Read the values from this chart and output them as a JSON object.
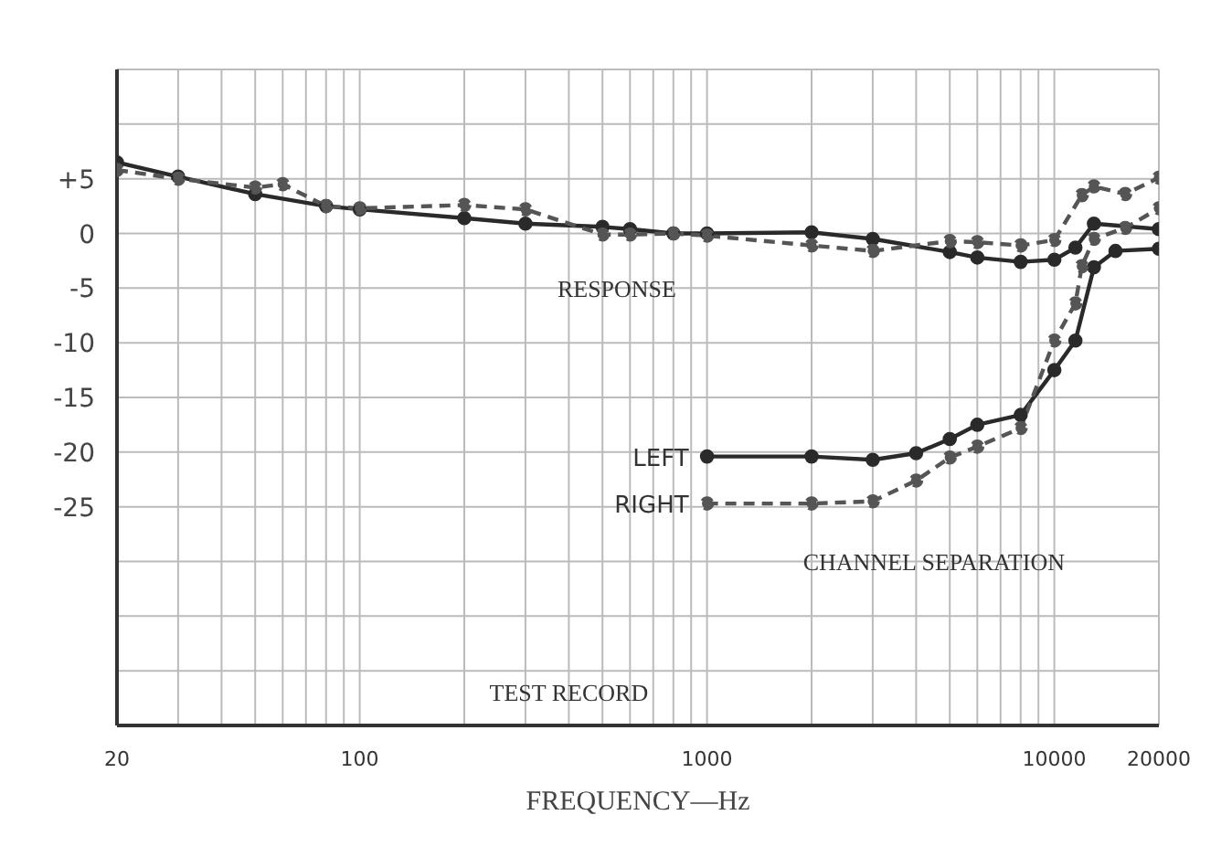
{
  "chart_data": {
    "type": "line",
    "xlabel": "FREQUENCY—Hz",
    "log": "x",
    "grid": true,
    "marker": "circle",
    "xlim": [
      20,
      20000
    ],
    "ylim": [
      -45,
      15
    ],
    "xticks": [
      20,
      {
        "value": 30,
        "label": null
      },
      {
        "value": 40,
        "label": null
      },
      {
        "value": 50,
        "label": null
      },
      {
        "value": 60,
        "label": null
      },
      {
        "value": 70,
        "label": null
      },
      {
        "value": 80,
        "label": null
      },
      {
        "value": 90,
        "label": null
      },
      100,
      {
        "value": 200,
        "label": null
      },
      {
        "value": 300,
        "label": null
      },
      {
        "value": 400,
        "label": null
      },
      {
        "value": 500,
        "label": null
      },
      {
        "value": 600,
        "label": null
      },
      {
        "value": 700,
        "label": null
      },
      {
        "value": 800,
        "label": null
      },
      {
        "value": 900,
        "label": null
      },
      1000,
      {
        "value": 2000,
        "label": null
      },
      {
        "value": 3000,
        "label": null
      },
      {
        "value": 4000,
        "label": null
      },
      {
        "value": 5000,
        "label": null
      },
      {
        "value": 6000,
        "label": null
      },
      {
        "value": 7000,
        "label": null
      },
      {
        "value": 8000,
        "label": null
      },
      {
        "value": 9000,
        "label": null
      },
      10000,
      20000
    ],
    "yticks": [
      {
        "value": -45,
        "label": null
      },
      {
        "value": -40,
        "label": null
      },
      {
        "value": -35,
        "label": null
      },
      {
        "value": -30,
        "label": null
      },
      -25,
      -20,
      -15,
      -10,
      -5,
      0,
      {
        "value": 5,
        "label": "+5"
      },
      {
        "value": 10,
        "label": null
      },
      {
        "value": 15,
        "label": null
      }
    ],
    "annotations": [
      "RESPONSE",
      "CHANNEL SEPARATION",
      "TEST RECORD"
    ],
    "series": [
      {
        "color": "#2a2a2a",
        "line_style": "solid",
        "x": [
          20,
          30,
          50,
          80,
          100,
          200,
          300,
          500,
          600,
          800,
          1000,
          2000,
          3000,
          5000,
          6000,
          8000,
          10000,
          11500,
          13000,
          20000
        ],
        "values": [
          6.5,
          5.2,
          3.6,
          2.5,
          2.2,
          1.4,
          0.9,
          0.6,
          0.4,
          0,
          0,
          0.1,
          -0.5,
          -1.7,
          -2.2,
          -2.6,
          -2.4,
          -1.3,
          0.9,
          0.4
        ]
      },
      {
        "color": "#555555",
        "line_style": "dashed",
        "x": [
          20,
          30,
          50,
          60,
          80,
          100,
          200,
          300,
          500,
          600,
          800,
          1000,
          2000,
          3000,
          5000,
          6000,
          8000,
          10000,
          12000,
          13000,
          16000,
          20000
        ],
        "values": [
          5.8,
          5,
          4.2,
          4.5,
          2.5,
          2.3,
          2.6,
          2.2,
          -0.1,
          -0.1,
          0,
          -0.2,
          -1.1,
          -1.6,
          -0.7,
          -0.8,
          -1.1,
          -0.6,
          3.5,
          4.3,
          3.6,
          5.1
        ]
      },
      {
        "name": "LEFT",
        "color": "#2a2a2a",
        "line_style": "solid",
        "x": [
          1000,
          2000,
          3000,
          4000,
          5000,
          6000,
          8000,
          10000,
          11500,
          13000,
          15000,
          20000
        ],
        "values": [
          -20.4,
          -20.4,
          -20.7,
          -20.1,
          -18.8,
          -17.5,
          -16.6,
          -12.5,
          -9.8,
          -3.1,
          -1.6,
          -1.4
        ]
      },
      {
        "name": "RIGHT",
        "color": "#555555",
        "line_style": "dashed",
        "x": [
          1000,
          2000,
          3000,
          4000,
          5000,
          6000,
          8000,
          10000,
          11500,
          12000,
          13000,
          16000,
          20000
        ],
        "values": [
          -24.7,
          -24.7,
          -24.5,
          -22.6,
          -20.5,
          -19.5,
          -17.8,
          -9.8,
          -6.4,
          -3,
          -0.5,
          0.5,
          2.3
        ]
      }
    ]
  }
}
